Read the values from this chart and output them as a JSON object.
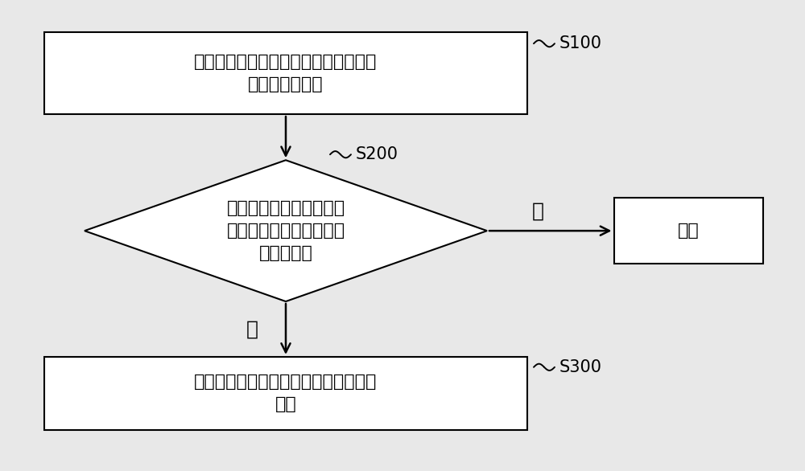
{
  "bg_color": "#e8e8e8",
  "box1_text": "获取与所述终端相连接的耳机在播放时\n的状态参数信息",
  "box1_label": "S100",
  "diamond_text": "根据所述状态参数信息判\n断所述耳机是否未处于佩\n戴使用状态",
  "diamond_label": "S200",
  "box_end_text": "结束",
  "box3_text": "控制所述终端停止向所述耳机输出音频\n信号",
  "box3_label": "S300",
  "yes_label": "是",
  "no_label": "否",
  "line_color": "#000000",
  "box_fill": "#ffffff",
  "box_edge": "#000000",
  "font_size_main": 16,
  "font_size_label": 15
}
